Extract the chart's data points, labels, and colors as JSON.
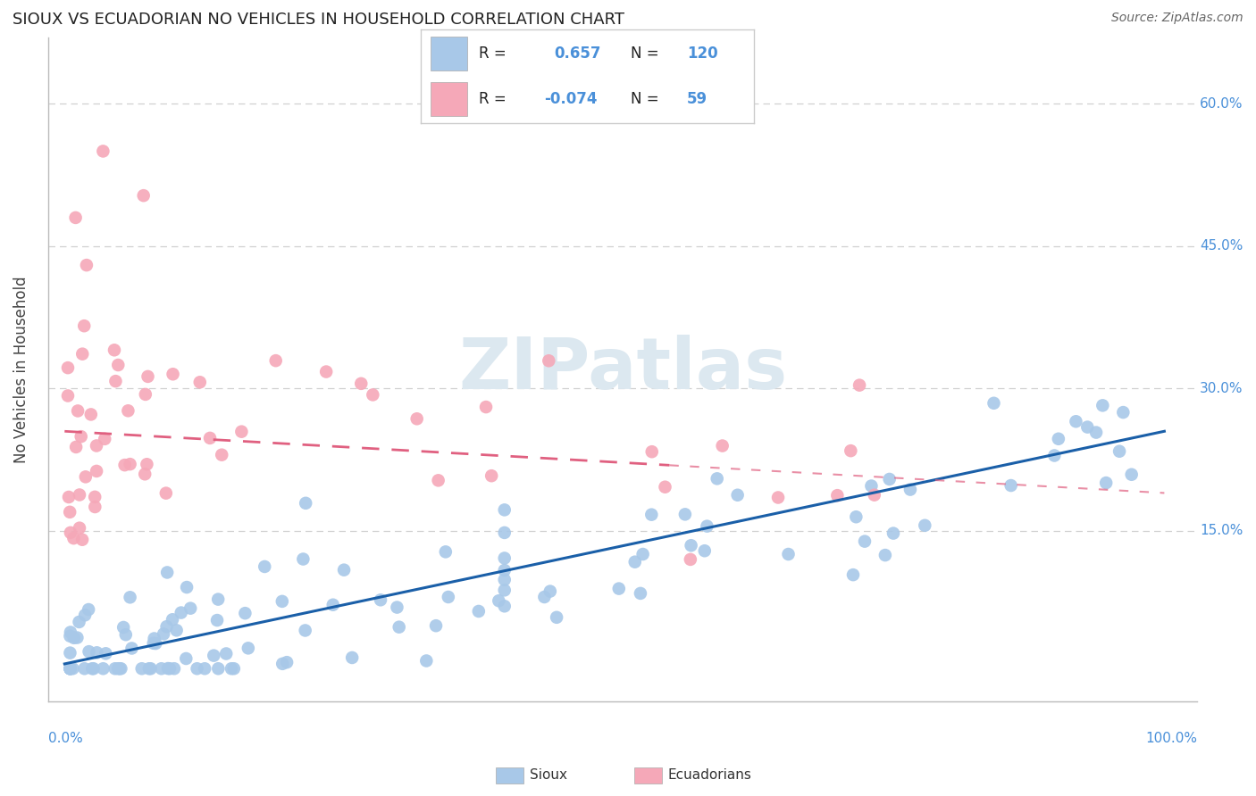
{
  "title": "SIOUX VS ECUADORIAN NO VEHICLES IN HOUSEHOLD CORRELATION CHART",
  "source": "Source: ZipAtlas.com",
  "ylabel": "No Vehicles in Household",
  "sioux_R": 0.657,
  "sioux_N": 120,
  "ecuadorian_R": -0.074,
  "ecuadorian_N": 59,
  "sioux_color": "#a8c8e8",
  "ecuadorian_color": "#f5a8b8",
  "sioux_line_color": "#1a5fa8",
  "ecuadorian_line_color": "#e06080",
  "watermark_color": "#dce8f0",
  "background_color": "#ffffff",
  "grid_color": "#d0d0d0",
  "tick_color": "#4a90d9",
  "title_color": "#222222",
  "ylabel_color": "#444444",
  "source_color": "#666666",
  "xlim": [
    -1.5,
    103
  ],
  "ylim": [
    -3,
    67
  ],
  "ytick_vals": [
    0,
    15,
    30,
    45,
    60
  ],
  "ytick_labels": [
    "",
    "15.0%",
    "30.0%",
    "45.0%",
    "60.0%"
  ],
  "sioux_slope": 0.245,
  "sioux_intercept": 1.0,
  "ecu_slope": -0.065,
  "ecu_intercept": 25.5,
  "sioux_scatter_seed": 12,
  "ecu_scatter_seed": 42
}
